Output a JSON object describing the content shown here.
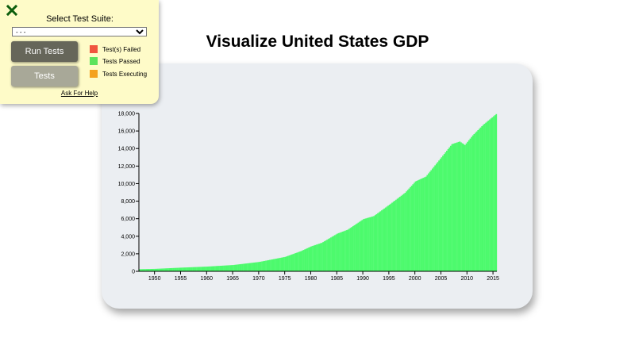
{
  "page": {
    "title": "Visualize United States GDP"
  },
  "test_panel": {
    "suite_label": "Select Test Suite:",
    "suite_selected": "- - -",
    "run_button": "Run Tests",
    "tests_button": "Tests",
    "legend": [
      {
        "label": "Test(s) Failed",
        "color": "#f0553f"
      },
      {
        "label": "Tests Passed",
        "color": "#5ce35c"
      },
      {
        "label": "Tests Executing",
        "color": "#f4a21e"
      }
    ],
    "help_link": "Ask For Help",
    "close_icon": "close-x-icon",
    "close_color": "#0d5e0d"
  },
  "chart_data": {
    "type": "bar",
    "title": "",
    "xlabel": "",
    "ylabel": "",
    "bar_color": "#4dfa6d",
    "xlim": [
      1947,
      2015.75
    ],
    "ylim": [
      0,
      18000
    ],
    "x_ticks": [
      1950,
      1955,
      1960,
      1965,
      1970,
      1975,
      1980,
      1985,
      1990,
      1995,
      2000,
      2005,
      2010,
      2015
    ],
    "x_tick_labels": [
      "1950",
      "1955",
      "1960",
      "1965",
      "1970",
      "1975",
      "1980",
      "1985",
      "1990",
      "1995",
      "2000",
      "2005",
      "2010",
      "2015"
    ],
    "y_ticks": [
      0,
      2000,
      4000,
      6000,
      8000,
      10000,
      12000,
      14000,
      16000,
      18000
    ],
    "y_tick_labels": [
      "0",
      "2,000",
      "4,000",
      "6,000",
      "8,000",
      "10,000",
      "12,000",
      "14,000",
      "16,000",
      "18,000"
    ],
    "series": [
      {
        "x": [
          1947,
          1950,
          1955,
          1960,
          1965,
          1970,
          1975,
          1978,
          1980,
          1982,
          1985,
          1987,
          1990,
          1992,
          1995,
          1998,
          2000,
          2002,
          2005,
          2007,
          2008.5,
          2009.5,
          2011,
          2013,
          2015.75
        ],
        "values": [
          243,
          280,
          420,
          540,
          720,
          1070,
          1650,
          2300,
          2850,
          3250,
          4300,
          4750,
          5950,
          6300,
          7600,
          8950,
          10250,
          10800,
          13000,
          14500,
          14800,
          14400,
          15500,
          16700,
          18050
        ]
      }
    ]
  }
}
